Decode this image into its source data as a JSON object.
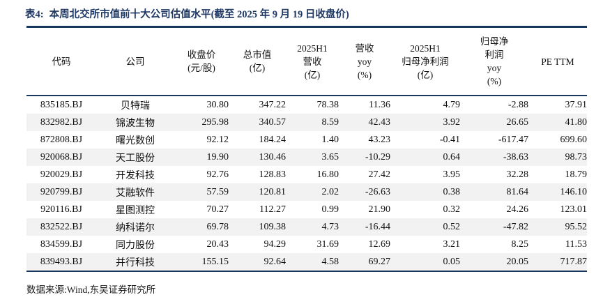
{
  "title": {
    "prefix": "表4:",
    "text": "本周北交所市值前十大公司估值水平(截至 2025 年 9 月 19 日收盘价)"
  },
  "table": {
    "columns": [
      {
        "key": "code",
        "align": "center",
        "label_lines": [
          "代码"
        ]
      },
      {
        "key": "company",
        "align": "center",
        "label_lines": [
          "公司"
        ]
      },
      {
        "key": "close",
        "align": "right",
        "label_lines": [
          "收盘价",
          "(元/股)"
        ]
      },
      {
        "key": "mcap",
        "align": "right",
        "label_lines": [
          "总市值",
          "(亿)"
        ]
      },
      {
        "key": "revenue",
        "align": "right",
        "label_lines": [
          "2025H1",
          "营收",
          "(亿)"
        ]
      },
      {
        "key": "revenue_yoy",
        "align": "right",
        "label_lines": [
          "营收",
          "yoy",
          "(%)"
        ]
      },
      {
        "key": "net_profit",
        "align": "right",
        "label_lines": [
          "2025H1",
          "归母净利润",
          "(亿)"
        ]
      },
      {
        "key": "profit_yoy",
        "align": "right",
        "label_lines": [
          "归母净",
          "利润",
          "yoy",
          "(%)"
        ]
      },
      {
        "key": "pe_ttm",
        "align": "right",
        "label_lines": [
          "PE TTM"
        ]
      }
    ],
    "rows": [
      [
        "835185.BJ",
        "贝特瑞",
        "30.80",
        "347.22",
        "78.38",
        "11.36",
        "4.79",
        "-2.88",
        "37.91"
      ],
      [
        "832982.BJ",
        "锦波生物",
        "295.98",
        "340.57",
        "8.59",
        "42.43",
        "3.92",
        "26.65",
        "41.80"
      ],
      [
        "872808.BJ",
        "曙光数创",
        "92.12",
        "184.24",
        "1.40",
        "43.23",
        "-0.41",
        "-617.47",
        "699.60"
      ],
      [
        "920068.BJ",
        "天工股份",
        "19.90",
        "130.46",
        "3.65",
        "-10.29",
        "0.64",
        "-38.63",
        "98.73"
      ],
      [
        "920029.BJ",
        "开发科技",
        "92.76",
        "128.83",
        "16.80",
        "27.42",
        "3.95",
        "32.28",
        "18.79"
      ],
      [
        "920799.BJ",
        "艾融软件",
        "57.59",
        "120.81",
        "2.02",
        "-26.63",
        "0.38",
        "81.64",
        "146.10"
      ],
      [
        "920116.BJ",
        "星图测控",
        "70.27",
        "112.27",
        "0.99",
        "21.90",
        "0.32",
        "24.26",
        "123.01"
      ],
      [
        "832522.BJ",
        "纳科诺尔",
        "69.78",
        "109.38",
        "4.73",
        "-16.44",
        "0.52",
        "-47.82",
        "95.52"
      ],
      [
        "834599.BJ",
        "同力股份",
        "20.43",
        "94.29",
        "31.69",
        "12.69",
        "3.21",
        "8.25",
        "11.53"
      ],
      [
        "839493.BJ",
        "并行科技",
        "155.15",
        "92.64",
        "4.58",
        "69.27",
        "0.05",
        "20.05",
        "717.87"
      ]
    ]
  },
  "footer": {
    "text": "数据来源:Wind,东吴证券研究所"
  },
  "colors": {
    "title_navy": "#1F3864",
    "rule_navy": "#17375E",
    "stripe_gray": "#F2F2F2",
    "background": "#FFFFFF"
  }
}
